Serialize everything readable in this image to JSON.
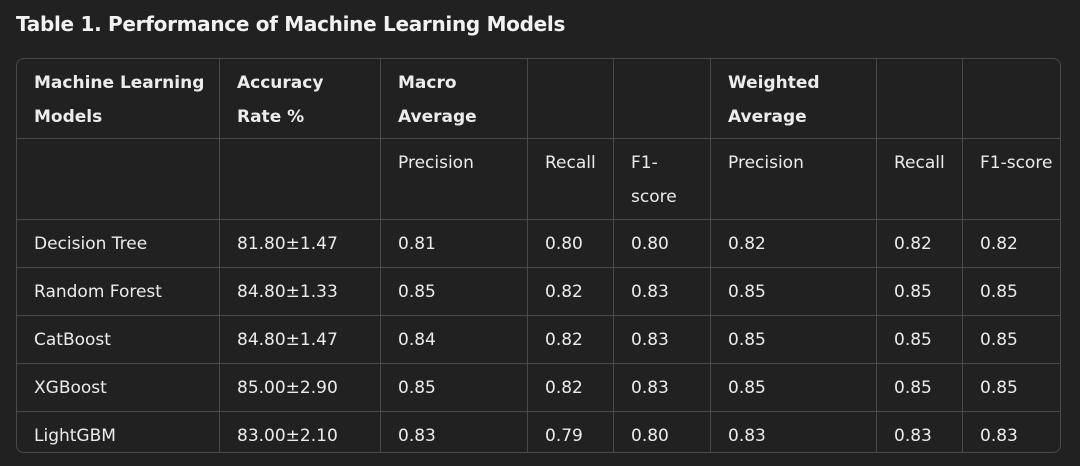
{
  "title": "Table 1. Performance of Machine Learning Models",
  "table": {
    "header": [
      "Machine Learning Models",
      "Accuracy Rate %",
      "Macro Average",
      "Weighted Average"
    ],
    "subheader": [
      "Precision",
      "Recall",
      "F1-score",
      "Precision",
      "Recall",
      "F1-score"
    ],
    "rows": [
      [
        "Decision Tree",
        "81.80±1.47",
        "0.81",
        "0.80",
        "0.80",
        "0.82",
        "0.82",
        "0.82"
      ],
      [
        "Random Forest",
        "84.80±1.33",
        "0.85",
        "0.82",
        "0.83",
        "0.85",
        "0.85",
        "0.85"
      ],
      [
        "CatBoost",
        "84.80±1.47",
        "0.84",
        "0.82",
        "0.83",
        "0.85",
        "0.85",
        "0.85"
      ],
      [
        "XGBoost",
        "85.00±2.90",
        "0.85",
        "0.82",
        "0.83",
        "0.85",
        "0.85",
        "0.85"
      ],
      [
        "LightGBM",
        "83.00±2.10",
        "0.83",
        "0.79",
        "0.80",
        "0.83",
        "0.83",
        "0.83"
      ]
    ]
  }
}
